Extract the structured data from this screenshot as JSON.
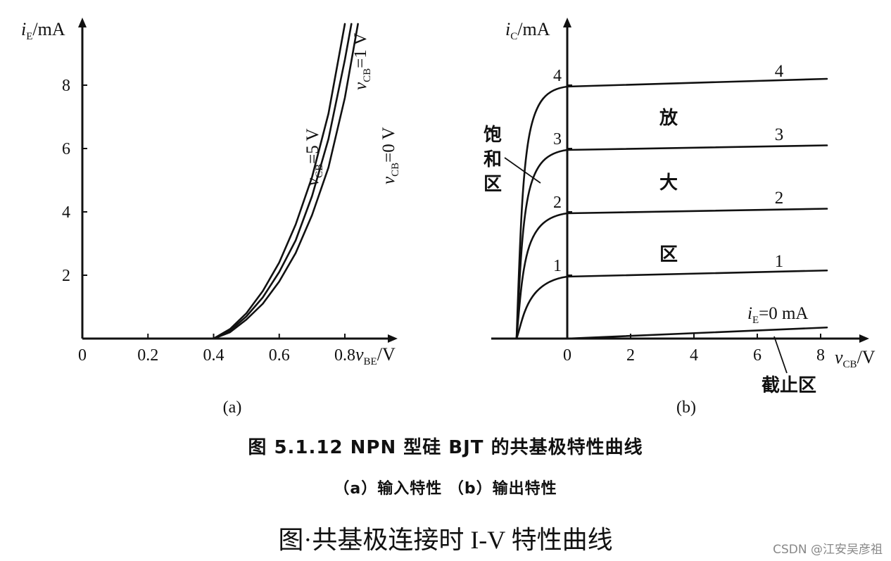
{
  "chart_data": [
    {
      "type": "line",
      "panel_label": "(a)",
      "xlabel": {
        "main": "v",
        "sub": "BE",
        "unit": "/V"
      },
      "ylabel": {
        "main": "i",
        "sub": "E",
        "unit": "/mA"
      },
      "xlim": [
        0,
        0.9
      ],
      "ylim": [
        0,
        9.5
      ],
      "x_ticks": [
        "0",
        "0.2",
        "0.4",
        "0.6",
        "0.8"
      ],
      "y_ticks": [
        "2",
        "4",
        "6",
        "8"
      ],
      "series": [
        {
          "name": "v_CB=5 V",
          "label_main": "v",
          "label_sub": "CB",
          "label_rest": "=5 V",
          "x": [
            0.4,
            0.45,
            0.5,
            0.55,
            0.6,
            0.65,
            0.7,
            0.75,
            0.78,
            0.8
          ],
          "y": [
            0,
            0.3,
            0.8,
            1.5,
            2.4,
            3.6,
            5.1,
            7.1,
            8.8,
            10
          ]
        },
        {
          "name": "v_CB=1 V",
          "label_main": "v",
          "label_sub": "CB",
          "label_rest": "=1 V",
          "x": [
            0.4,
            0.45,
            0.5,
            0.55,
            0.6,
            0.65,
            0.7,
            0.75,
            0.8,
            0.82
          ],
          "y": [
            0,
            0.25,
            0.7,
            1.3,
            2.1,
            3.1,
            4.5,
            6.3,
            8.8,
            10
          ]
        },
        {
          "name": "v_CB=0 V",
          "label_main": "v",
          "label_sub": "CB",
          "label_rest": "=0 V",
          "x": [
            0.4,
            0.45,
            0.5,
            0.55,
            0.6,
            0.65,
            0.7,
            0.75,
            0.8,
            0.84
          ],
          "y": [
            0,
            0.2,
            0.6,
            1.1,
            1.8,
            2.7,
            3.9,
            5.4,
            7.6,
            10
          ]
        }
      ]
    },
    {
      "type": "line",
      "panel_label": "(b)",
      "xlabel": {
        "main": "v",
        "sub": "CB",
        "unit": "/V"
      },
      "ylabel": {
        "main": "i",
        "sub": "C",
        "unit": "/mA"
      },
      "xlim": [
        -1.5,
        8.5
      ],
      "ylim": [
        0,
        9.5
      ],
      "x_ticks": [
        "0",
        "2",
        "4",
        "6",
        "8"
      ],
      "y_ticks": [
        "1",
        "2",
        "3",
        "4"
      ],
      "series": [
        {
          "name": "4",
          "plateau": 8.0,
          "end": 8.2
        },
        {
          "name": "3",
          "plateau": 6.0,
          "end": 6.1
        },
        {
          "name": "2",
          "plateau": 4.0,
          "end": 4.1
        },
        {
          "name": "1",
          "plateau": 2.0,
          "end": 2.15
        },
        {
          "name": "i_E=0 mA",
          "label_main": "i",
          "label_sub": "E",
          "label_rest": "=0 mA",
          "plateau": 0.0,
          "end": 0.35
        }
      ],
      "regions": {
        "saturation": [
          "饱",
          "和",
          "区"
        ],
        "active": [
          "放",
          "大",
          "区"
        ],
        "cutoff": "截止区"
      }
    }
  ],
  "figure_title": "图 5.1.12   NPN 型硅 BJT 的共基极特性曲线",
  "figure_subtitle": "（a）输入特性  （b）输出特性",
  "caption": "图·共基极连接时 I-V 特性曲线",
  "watermark": "CSDN @江安吴彦祖"
}
